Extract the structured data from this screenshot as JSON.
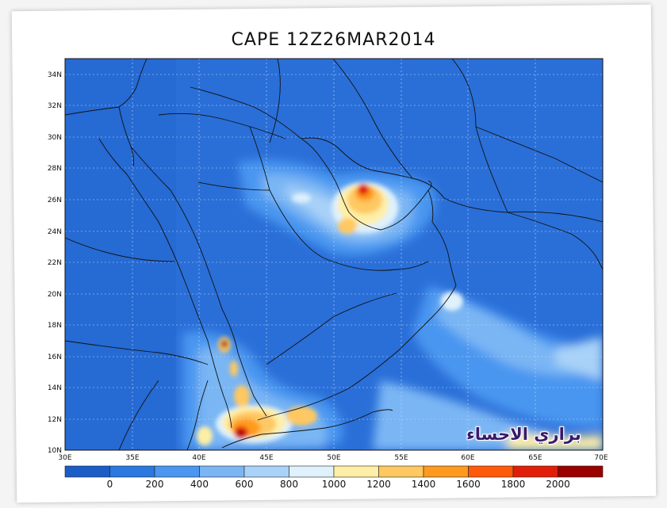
{
  "title": "CAPE 12Z26MAR2014",
  "watermark": "براري الاحساء",
  "lat_labels": [
    "34N",
    "32N",
    "30N",
    "28N",
    "26N",
    "24N",
    "22N",
    "20N",
    "18N",
    "16N",
    "14N",
    "12N",
    "10N"
  ],
  "lon_labels": [
    "30E",
    "35E",
    "40E",
    "45E",
    "50E",
    "55E",
    "60E",
    "65E",
    "70E"
  ],
  "colorbar": {
    "labels": [
      "0",
      "200",
      "400",
      "600",
      "800",
      "1000",
      "1200",
      "1400",
      "1600",
      "1800",
      "2000"
    ],
    "colors": [
      "#1a5dc7",
      "#2a78e0",
      "#4a96f0",
      "#7ab6f4",
      "#a9d2f8",
      "#dff1fc",
      "#ffefa6",
      "#ffc860",
      "#ff9a1e",
      "#ff5a0a",
      "#e01e0a",
      "#9a0000"
    ]
  },
  "colors": {
    "background_field": "#2a6fd8",
    "coast": "#111111",
    "grid": "#c8d8f0"
  }
}
